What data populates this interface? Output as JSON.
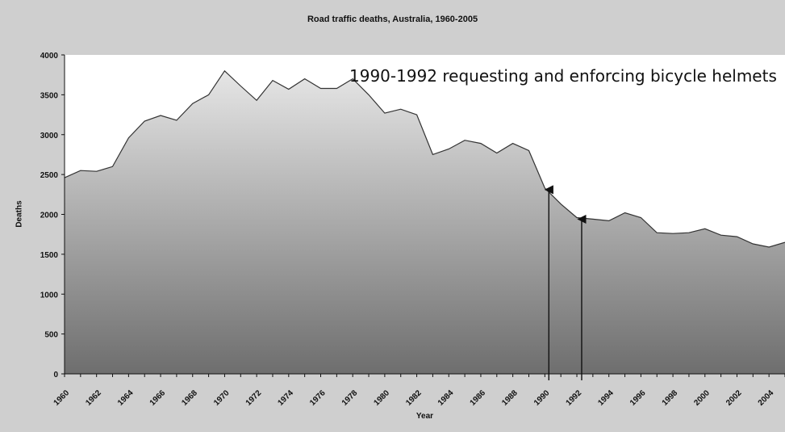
{
  "chart_data": {
    "type": "area",
    "title": "Road traffic deaths, Australia, 1960-2005",
    "xlabel": "Year",
    "ylabel": "Deaths",
    "ylim": [
      0,
      4000
    ],
    "xlim": [
      1960,
      2005
    ],
    "grid": false,
    "x_tick_labels": [
      "1960",
      "1962",
      "1964",
      "1966",
      "1968",
      "1970",
      "1972",
      "1974",
      "1976",
      "1978",
      "1980",
      "1982",
      "1984",
      "1986",
      "1988",
      "1990",
      "1992",
      "1994",
      "1996",
      "1998",
      "2000",
      "2002",
      "2004"
    ],
    "y_tick_labels": [
      "0",
      "500",
      "1000",
      "1500",
      "2000",
      "2500",
      "3000",
      "3500",
      "4000"
    ],
    "x": [
      1960,
      1961,
      1962,
      1963,
      1964,
      1965,
      1966,
      1967,
      1968,
      1969,
      1970,
      1971,
      1972,
      1973,
      1974,
      1975,
      1976,
      1977,
      1978,
      1979,
      1980,
      1981,
      1982,
      1983,
      1984,
      1985,
      1986,
      1987,
      1988,
      1989,
      1990,
      1991,
      1992,
      1993,
      1994,
      1995,
      1996,
      1997,
      1998,
      1999,
      2000,
      2001,
      2002,
      2003,
      2004,
      2005
    ],
    "values": [
      2460,
      2550,
      2540,
      2600,
      2960,
      3170,
      3240,
      3180,
      3390,
      3500,
      3800,
      3610,
      3430,
      3680,
      3570,
      3700,
      3580,
      3580,
      3700,
      3500,
      3270,
      3320,
      3250,
      2750,
      2820,
      2930,
      2890,
      2770,
      2890,
      2800,
      2330,
      2130,
      1960,
      1940,
      1920,
      2020,
      1960,
      1770,
      1760,
      1770,
      1820,
      1740,
      1720,
      1630,
      1590,
      1650
    ],
    "series": [
      {
        "values": [
          2460,
          2550,
          2540,
          2600,
          2960,
          3170,
          3240,
          3180,
          3390,
          3500,
          3800,
          3610,
          3430,
          3680,
          3570,
          3700,
          3580,
          3580,
          3700,
          3500,
          3270,
          3320,
          3250,
          2750,
          2820,
          2930,
          2890,
          2770,
          2890,
          2800,
          2330,
          2130,
          1960,
          1940,
          1920,
          2020,
          1960,
          1770,
          1760,
          1770,
          1820,
          1740,
          1720,
          1630,
          1590,
          1650
        ]
      }
    ],
    "annotation": {
      "text": "1990-1992 requesting and enforcing bicycle helmets",
      "arrows": [
        {
          "x": 1990.25,
          "y": 2330
        },
        {
          "x": 1992.3,
          "y": 1960
        }
      ]
    },
    "colors": {
      "line": "#333333",
      "area_top": "#e6e6e6",
      "area_bottom": "#6e6e6e",
      "background": "#ffffff",
      "frame": "#cfcfcf"
    }
  }
}
